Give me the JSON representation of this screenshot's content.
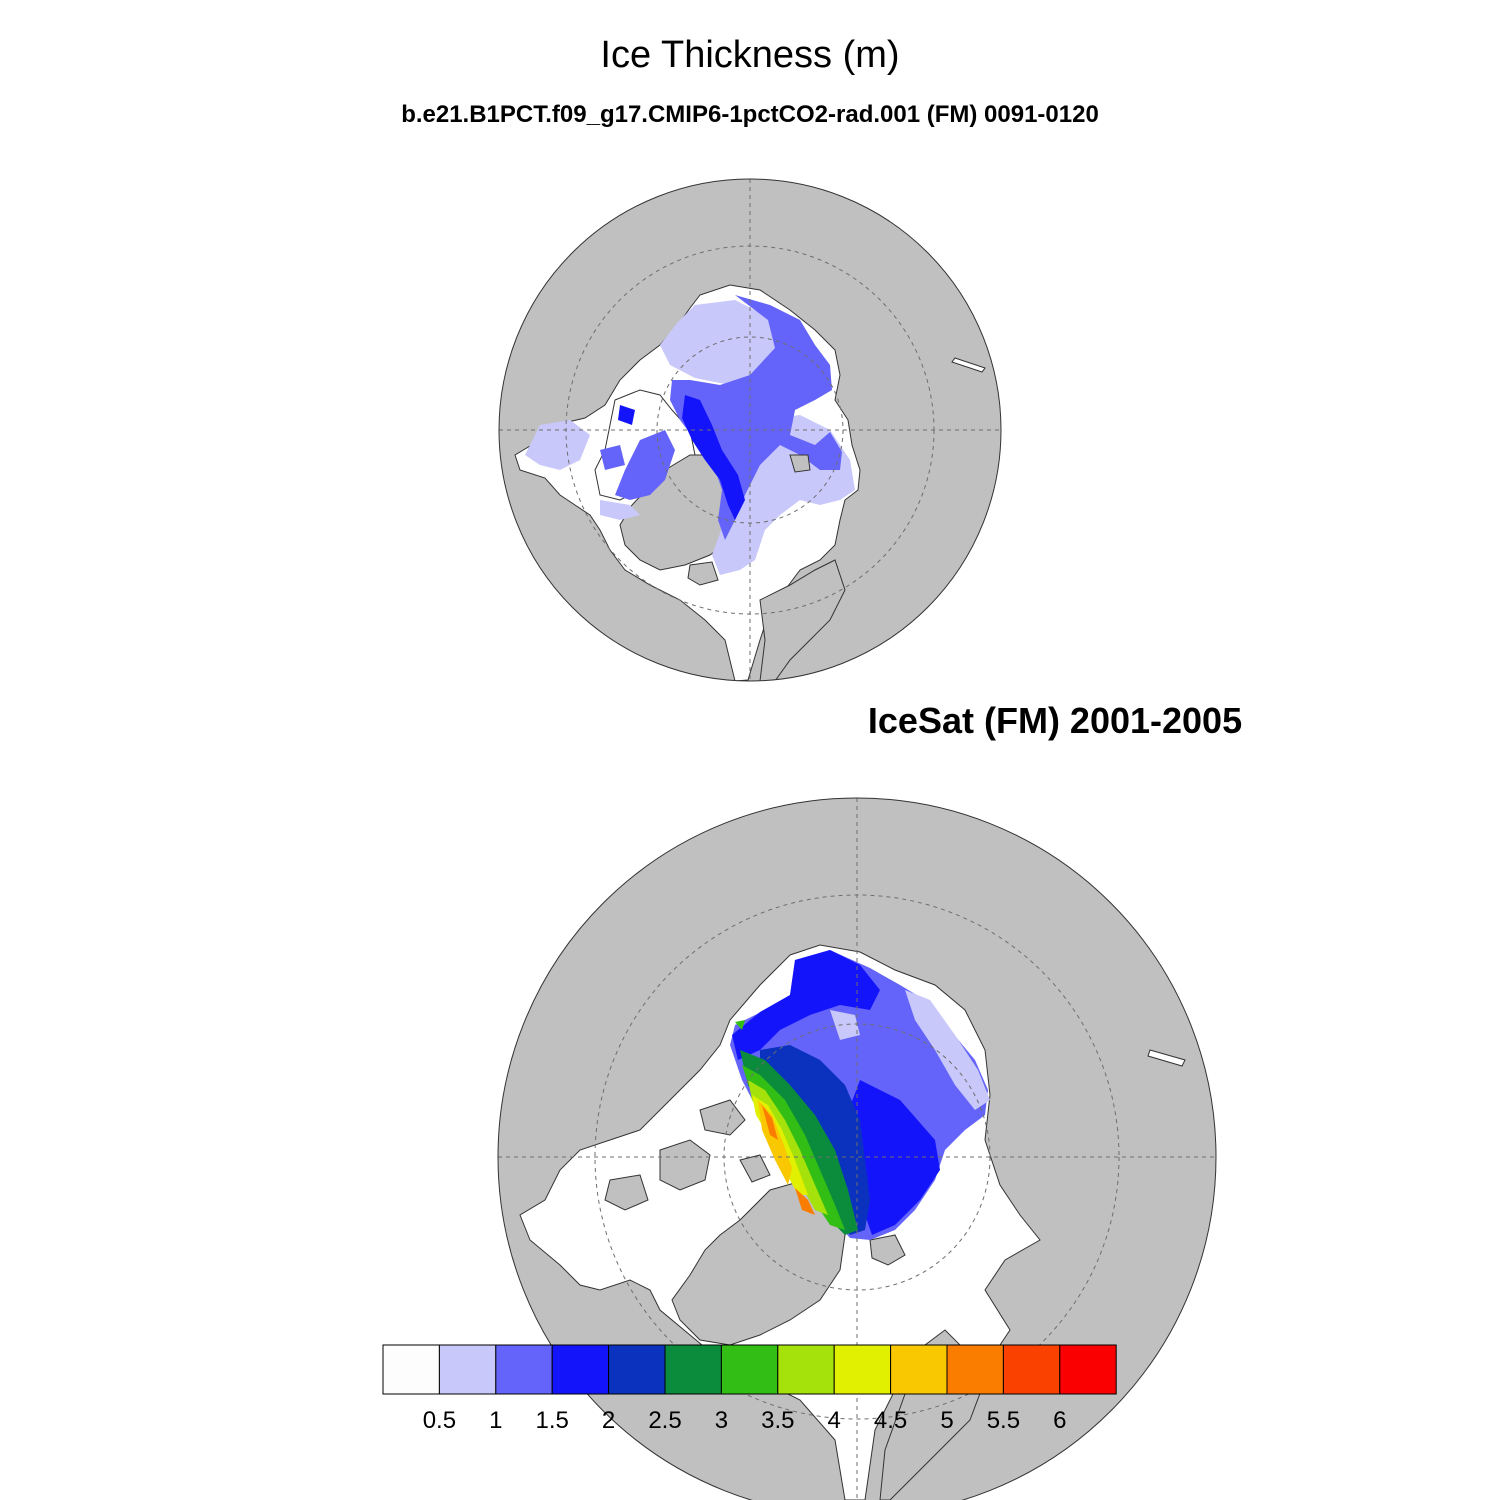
{
  "figure": {
    "title": "Ice Thickness (m)",
    "subtitle": "b.e21.B1PCT.f09_g17.CMIP6-1pctCO2-rad.001 (FM) 0091-0120",
    "panel2_title": "IceSat (FM) 2001-2005"
  },
  "colors": {
    "land": "#c0c0c0",
    "ocean": "#ffffff",
    "grid": "#6e6e6e"
  },
  "colorbar": {
    "labels": [
      "0.5",
      "1",
      "1.5",
      "2",
      "2.5",
      "3",
      "3.5",
      "4",
      "4.5",
      "5",
      "5.5",
      "6"
    ],
    "colors": [
      "#fdfdfd",
      "#c8c8fa",
      "#6464fa",
      "#1414fa",
      "#0a32be",
      "#0a8c3c",
      "#32be14",
      "#a5e10a",
      "#e1f000",
      "#fac800",
      "#fa7d00",
      "#fa4100",
      "#fa0000"
    ]
  }
}
